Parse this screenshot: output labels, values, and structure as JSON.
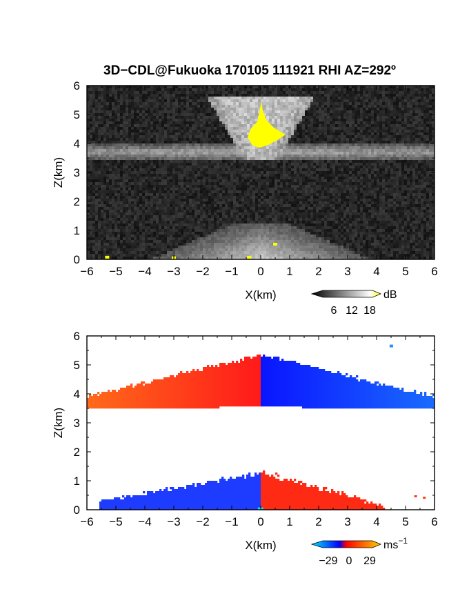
{
  "figure": {
    "title": "3D−CDL@Fukuoka 170105 111921 RHI AZ=292º"
  },
  "chart_data": [
    {
      "type": "heatmap",
      "name": "reflectivity",
      "xlabel": "X(km)",
      "ylabel": "Z(km)",
      "xlim": [
        -6,
        6
      ],
      "ylim": [
        0,
        6
      ],
      "xticks": [
        -6,
        -5,
        -4,
        -3,
        -2,
        -1,
        0,
        1,
        2,
        3,
        4,
        5,
        6
      ],
      "yticks": [
        0,
        1,
        2,
        3,
        4,
        5,
        6
      ],
      "xtick_labels": [
        "−6",
        "−5",
        "−4",
        "−3",
        "−2",
        "−1",
        "0",
        "1",
        "2",
        "3",
        "4",
        "5",
        "6"
      ],
      "ytick_labels": [
        "0",
        "1",
        "2",
        "3",
        "4",
        "5",
        "6"
      ],
      "colorbar": {
        "unit": "dB",
        "ticks": [
          6,
          12,
          18
        ],
        "tick_labels": [
          "6",
          "12",
          "18"
        ],
        "colors": [
          "#000000",
          "#ffffff",
          "#ffff00"
        ]
      },
      "features": {
        "upper_layer_z": [
          3.4,
          4.0
        ],
        "bright_core": {
          "x": [
            -0.4,
            0.9
          ],
          "z": [
            3.9,
            5.5
          ]
        },
        "lower_layer_z": [
          0,
          1.2
        ]
      }
    },
    {
      "type": "heatmap",
      "name": "doppler_velocity",
      "xlabel": "X(km)",
      "ylabel": "Z(km)",
      "xlim": [
        -6,
        6
      ],
      "ylim": [
        0,
        6
      ],
      "xticks": [
        -6,
        -5,
        -4,
        -3,
        -2,
        -1,
        0,
        1,
        2,
        3,
        4,
        5,
        6
      ],
      "yticks": [
        0,
        1,
        2,
        3,
        4,
        5,
        6
      ],
      "xtick_labels": [
        "−6",
        "−5",
        "−4",
        "−3",
        "−2",
        "−1",
        "0",
        "1",
        "2",
        "3",
        "4",
        "5",
        "6"
      ],
      "ytick_labels": [
        "0",
        "1",
        "2",
        "3",
        "4",
        "5",
        "6"
      ],
      "colorbar": {
        "unit": "ms",
        "unit_sup": "−1",
        "ticks": [
          -29,
          0,
          29
        ],
        "tick_labels": [
          "−29",
          "0",
          "29"
        ],
        "colors": [
          "#00e5ff",
          "#0000ff",
          "#ff0000",
          "#ffd000"
        ]
      },
      "features": {
        "upper_layer_left_velocity_color": "#ff6a1a",
        "upper_layer_right_velocity_color": "#1a6bff",
        "lower_layer_left_velocity_color": "#1e3cff",
        "lower_layer_right_velocity_color": "#ff2a14"
      }
    }
  ]
}
